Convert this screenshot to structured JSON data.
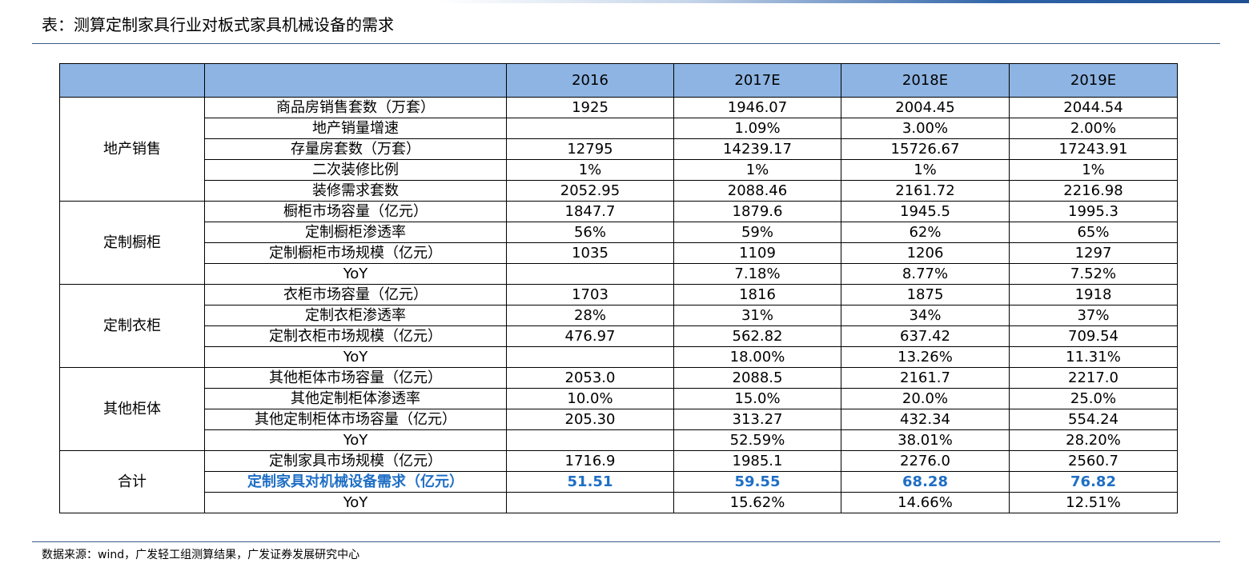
{
  "title": "表：测算定制家具行业对板式家具机械设备的需求",
  "source": "数据来源：wind，广发轻工组测算结果，广发证券发展研究中心",
  "header": {
    "group": "",
    "item": "",
    "years": [
      "2016",
      "2017E",
      "2018E",
      "2019E"
    ]
  },
  "groups": [
    {
      "name": "地产销售",
      "rows": [
        {
          "label": "商品房销售套数（万套）",
          "values": [
            "1925",
            "1946.07",
            "2004.45",
            "2044.54"
          ]
        },
        {
          "label": "地产销量增速",
          "values": [
            "",
            "1.09%",
            "3.00%",
            "2.00%"
          ]
        },
        {
          "label": "存量房套数（万套）",
          "values": [
            "12795",
            "14239.17",
            "15726.67",
            "17243.91"
          ]
        },
        {
          "label": "二次装修比例",
          "values": [
            "1%",
            "1%",
            "1%",
            "1%"
          ]
        },
        {
          "label": "装修需求套数",
          "values": [
            "2052.95",
            "2088.46",
            "2161.72",
            "2216.98"
          ]
        }
      ]
    },
    {
      "name": "定制橱柜",
      "rows": [
        {
          "label": "橱柜市场容量（亿元）",
          "values": [
            "1847.7",
            "1879.6",
            "1945.5",
            "1995.3"
          ]
        },
        {
          "label": "定制橱柜渗透率",
          "values": [
            "56%",
            "59%",
            "62%",
            "65%"
          ]
        },
        {
          "label": "定制橱柜市场规模（亿元）",
          "values": [
            "1035",
            "1109",
            "1206",
            "1297"
          ]
        },
        {
          "label": "YoY",
          "values": [
            "",
            "7.18%",
            "8.77%",
            "7.52%"
          ]
        }
      ]
    },
    {
      "name": "定制衣柜",
      "rows": [
        {
          "label": "衣柜市场容量（亿元）",
          "values": [
            "1703",
            "1816",
            "1875",
            "1918"
          ]
        },
        {
          "label": "定制衣柜渗透率",
          "values": [
            "28%",
            "31%",
            "34%",
            "37%"
          ]
        },
        {
          "label": "定制衣柜市场规模（亿元）",
          "values": [
            "476.97",
            "562.82",
            "637.42",
            "709.54"
          ]
        },
        {
          "label": "YoY",
          "values": [
            "",
            "18.00%",
            "13.26%",
            "11.31%"
          ]
        }
      ]
    },
    {
      "name": "其他柜体",
      "rows": [
        {
          "label": "其他柜体市场容量（亿元）",
          "values": [
            "2053.0",
            "2088.5",
            "2161.7",
            "2217.0"
          ]
        },
        {
          "label": "其他定制柜体渗透率",
          "values": [
            "10.0%",
            "15.0%",
            "20.0%",
            "25.0%"
          ]
        },
        {
          "label": "其他定制柜体市场容量（亿元）",
          "values": [
            "205.30",
            "313.27",
            "432.34",
            "554.24"
          ]
        },
        {
          "label": "YoY",
          "values": [
            "",
            "52.59%",
            "38.01%",
            "28.20%"
          ]
        }
      ]
    },
    {
      "name": "合计",
      "rows": [
        {
          "label": "定制家具市场规模（亿元）",
          "values": [
            "1716.9",
            "1985.1",
            "2276.0",
            "2560.7"
          ]
        },
        {
          "label": "定制家具对机械设备需求（亿元）",
          "values": [
            "51.51",
            "59.55",
            "68.28",
            "76.82"
          ],
          "highlight": true
        },
        {
          "label": "YoY",
          "values": [
            "",
            "15.62%",
            "14.66%",
            "12.51%"
          ]
        }
      ]
    }
  ],
  "colors": {
    "header_bg": "#8db4e2",
    "highlight_text": "#1f6fc5"
  }
}
